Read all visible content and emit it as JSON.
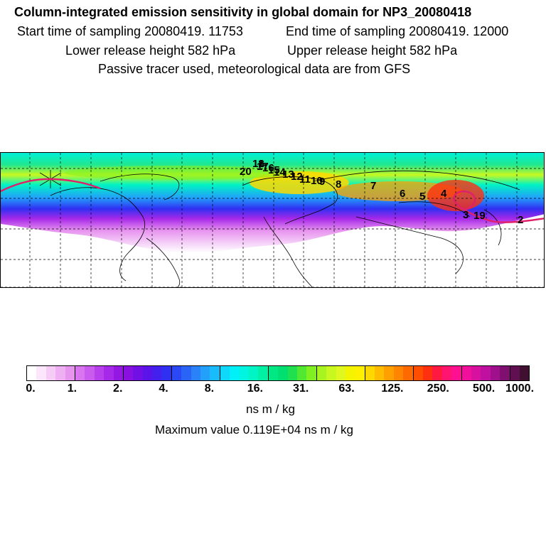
{
  "header": {
    "title": "Column-integrated emission sensitivity in global domain for NP3_20080418",
    "start_time": "Start time of sampling 20080419. 11753",
    "end_time": "End time of sampling 20080419. 12000",
    "lower_release": "Lower release height  582 hPa",
    "upper_release": "Upper release height  582 hPa",
    "tracer_note": "Passive tracer used, meteorological data are from GFS"
  },
  "map": {
    "trajectory_labels": [
      "1",
      "2",
      "3",
      "4",
      "5",
      "6",
      "7",
      "8",
      "9",
      "10",
      "11",
      "12",
      "13",
      "14",
      "15",
      "16",
      "17",
      "18",
      "19",
      "20"
    ],
    "trajectory_color": "#e0206a"
  },
  "colorbar": {
    "tick_labels": [
      "0.",
      "1.",
      "2.",
      "4.",
      "8.",
      "16.",
      "31.",
      "63.",
      "125.",
      "250.",
      "500.",
      "1000."
    ],
    "colors": [
      "#ffffff",
      "#fbe6fb",
      "#f5ccf5",
      "#eeb0f2",
      "#e794ef",
      "#d975ee",
      "#c95cee",
      "#b840ec",
      "#a628e8",
      "#9518e2",
      "#8a10e0",
      "#7010e4",
      "#5a14ea",
      "#4420ee",
      "#3030f2",
      "#2a48f4",
      "#2a64f6",
      "#2a82f8",
      "#22a0fa",
      "#18bcfa",
      "#10d8fa",
      "#00f0f8",
      "#00f4e0",
      "#00f4c4",
      "#00f0a4",
      "#00e884",
      "#00e070",
      "#20e050",
      "#50e830",
      "#80f020",
      "#a8f420",
      "#c8f820",
      "#e0f820",
      "#f4f400",
      "#fff000",
      "#ffd800",
      "#ffbc00",
      "#ffa000",
      "#ff8400",
      "#ff6a00",
      "#ff4e00",
      "#ff3010",
      "#ff1840",
      "#ff1470",
      "#ff1090",
      "#f0109c",
      "#d810a0",
      "#c010a0",
      "#a0108c",
      "#801070",
      "#601050",
      "#401030"
    ],
    "unit": "ns m / kg",
    "max_value": "Maximum value  0.119E+04 ns m / kg"
  }
}
